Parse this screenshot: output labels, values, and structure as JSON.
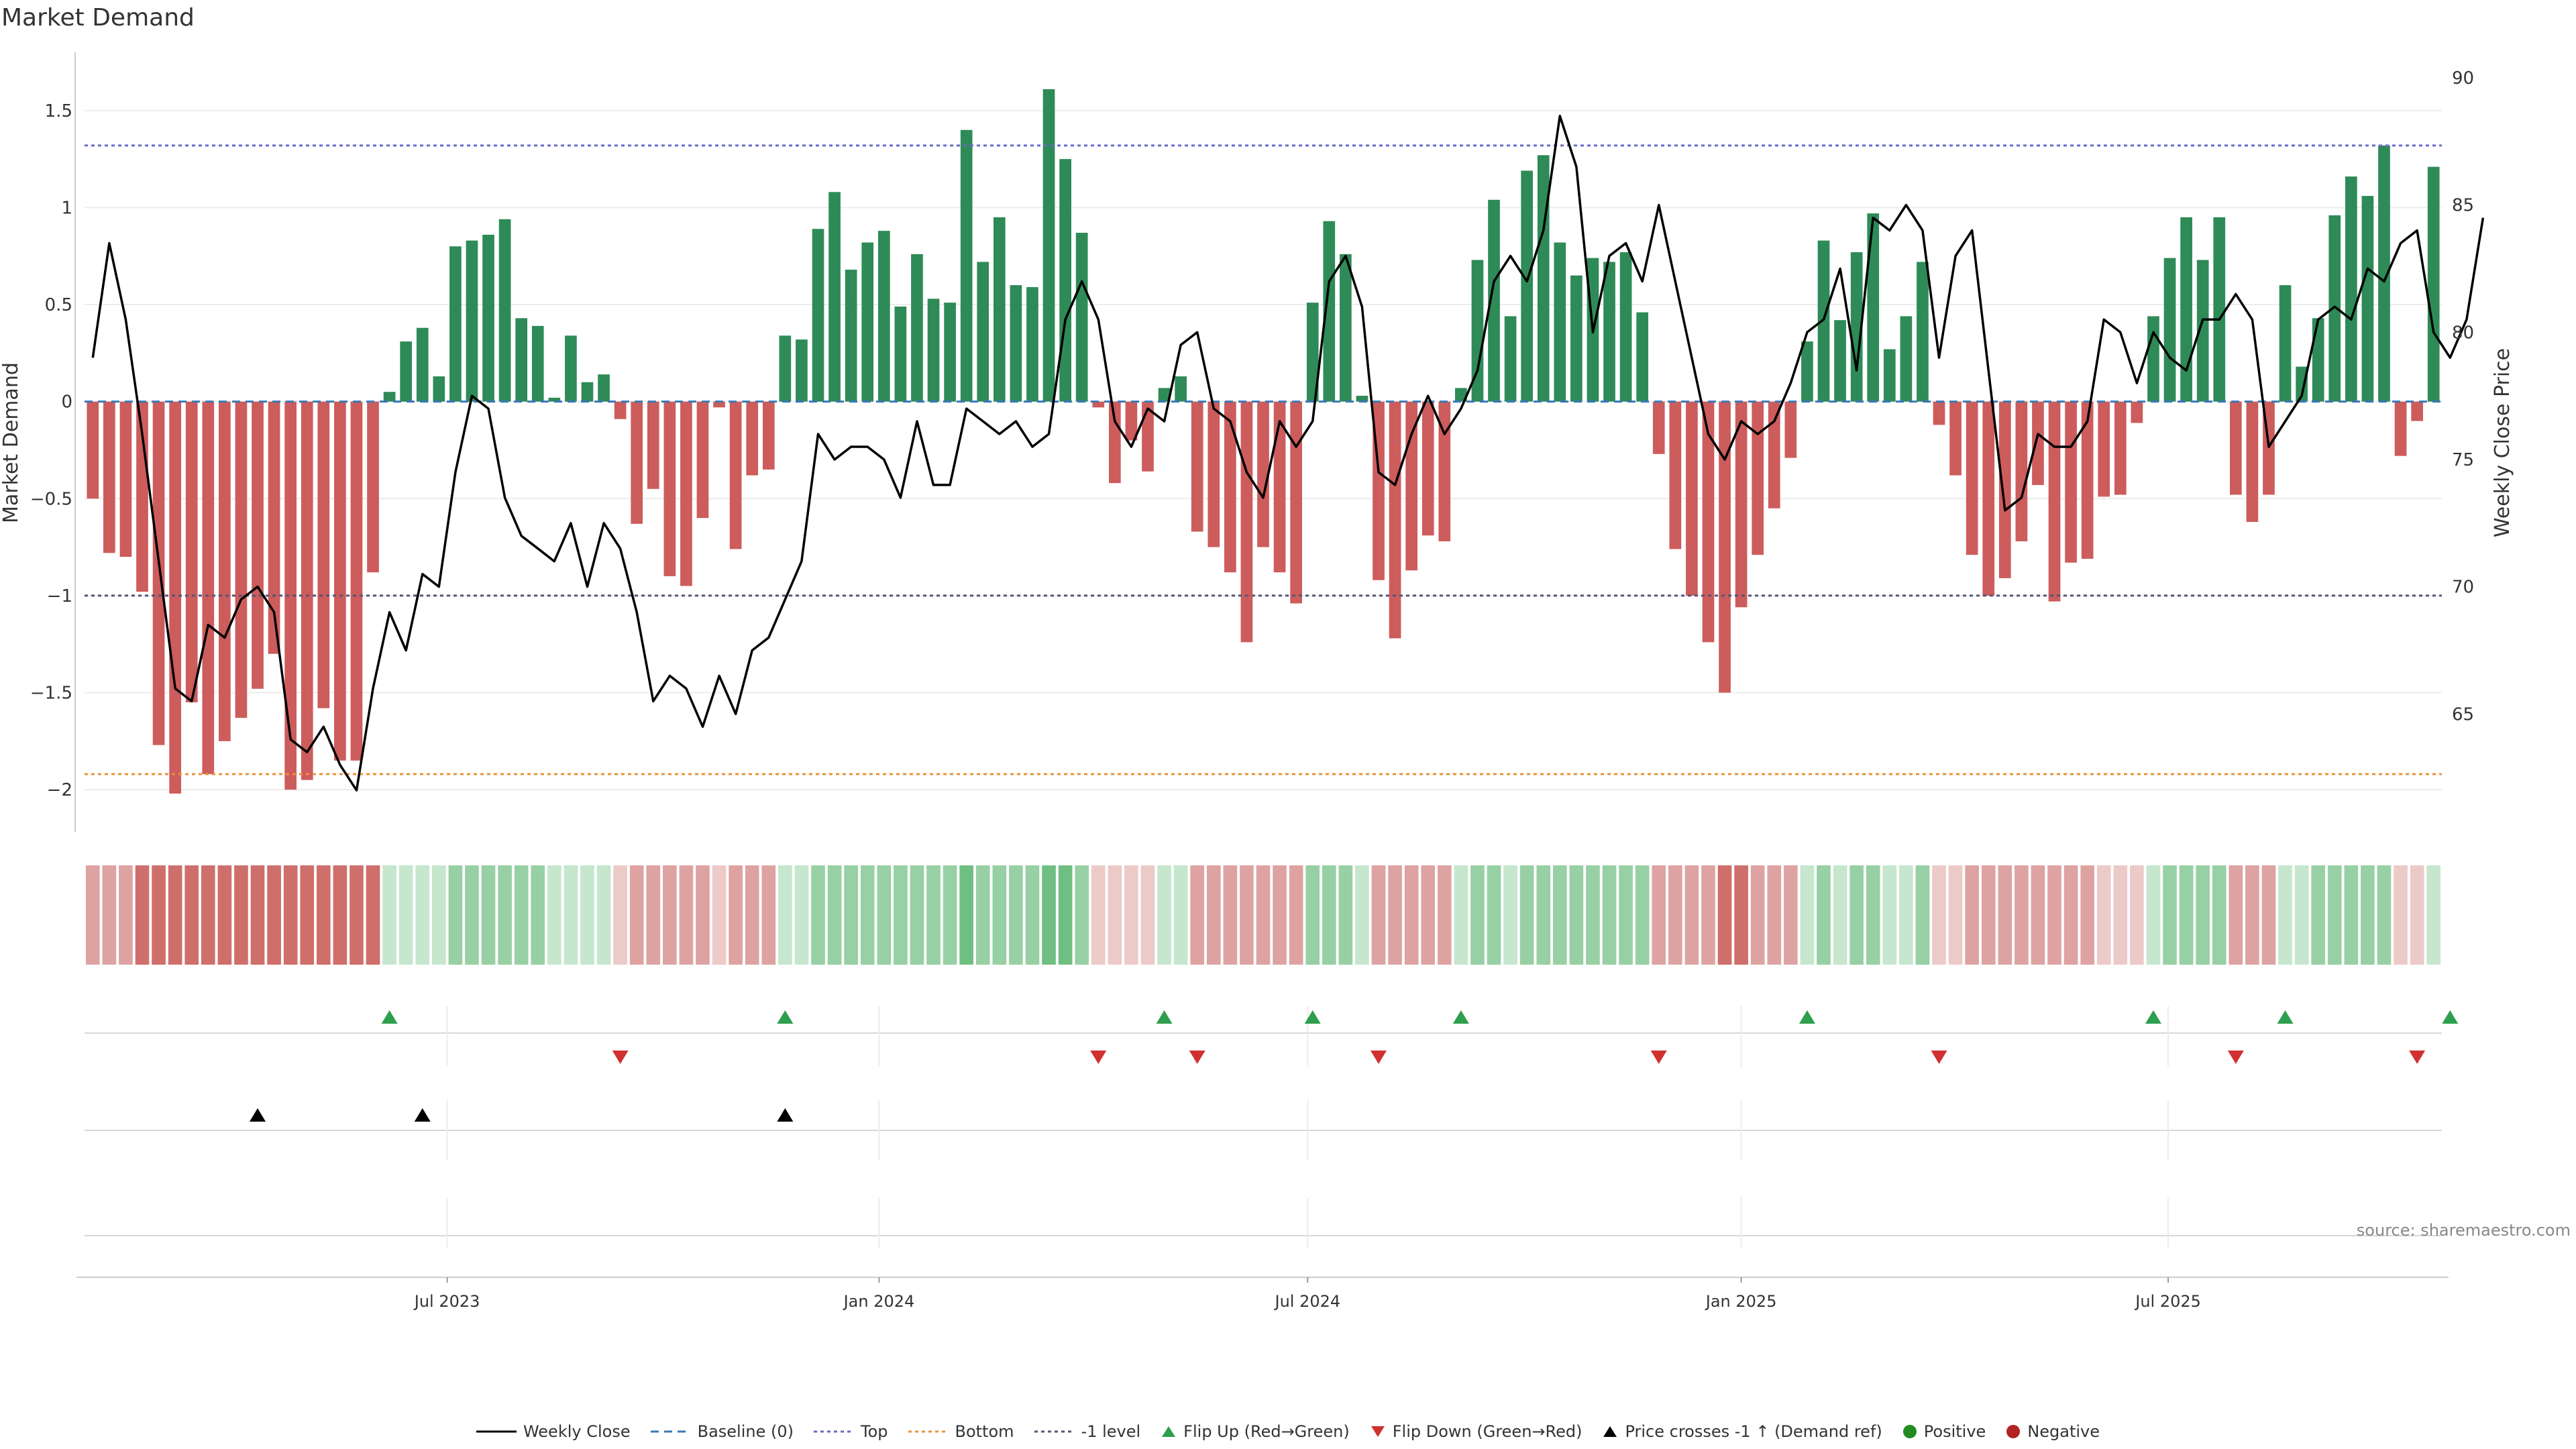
{
  "title": "Market Demand",
  "source": "source: sharemaestro.com",
  "colors": {
    "positive_bar": "#2e8b57",
    "negative_bar": "#cd5c5c",
    "top_line": "#6a6acd",
    "bottom_line": "#e8923c",
    "neg1_line": "#555577",
    "baseline": "#3a78b5",
    "flip_up": "#2e9e4f",
    "flip_down": "#d03030",
    "cross": "#000000",
    "close_line": "#000000"
  },
  "legend": [
    {
      "key": "close",
      "label": "Weekly Close"
    },
    {
      "key": "baseline",
      "label": "Baseline (0)"
    },
    {
      "key": "top",
      "label": "Top"
    },
    {
      "key": "bottom",
      "label": "Bottom"
    },
    {
      "key": "neg1",
      "label": "-1 level"
    },
    {
      "key": "flipup",
      "label": "Flip Up (Red→Green)"
    },
    {
      "key": "flipdown",
      "label": "Flip Down (Green→Red)"
    },
    {
      "key": "cross",
      "label": "Price crosses -1 ↑ (Demand ref)"
    },
    {
      "key": "pos",
      "label": "Positive"
    },
    {
      "key": "neg",
      "label": "Negative"
    }
  ],
  "chart_data": {
    "type": "bar",
    "title": "Market Demand",
    "ylabel": "Market Demand",
    "y2label": "Weekly Close Price",
    "ylim": [
      -2.2,
      1.8
    ],
    "y2lim": [
      60.5,
      91.0
    ],
    "yticks": [
      {
        "v": 1.5,
        "label": "1.5"
      },
      {
        "v": 1,
        "label": "1"
      },
      {
        "v": 0.5,
        "label": "0.5"
      },
      {
        "v": 0,
        "label": "0"
      },
      {
        "v": -0.5,
        "label": "−0.5"
      },
      {
        "v": -1,
        "label": "−1"
      },
      {
        "v": -1.5,
        "label": "−1.5"
      },
      {
        "v": -2,
        "label": "−2"
      }
    ],
    "y2ticks": [
      {
        "v": 90,
        "label": "90"
      },
      {
        "v": 85,
        "label": "85"
      },
      {
        "v": 80,
        "label": "80"
      },
      {
        "v": 75,
        "label": "75"
      },
      {
        "v": 70,
        "label": "70"
      },
      {
        "v": 65,
        "label": "65"
      }
    ],
    "xticks": [
      {
        "i": 21.5,
        "label": "Jul 2023"
      },
      {
        "i": 47.7,
        "label": "Jan 2024"
      },
      {
        "i": 73.7,
        "label": "Jul 2024"
      },
      {
        "i": 100,
        "label": "Jan 2025"
      },
      {
        "i": 125.9,
        "label": "Jul 2025"
      }
    ],
    "top_level": 1.32,
    "bottom_level": -1.92,
    "neg1_level": -1,
    "demand": [
      -0.5,
      -0.78,
      -0.8,
      -0.98,
      -1.77,
      -2.02,
      -1.55,
      -1.92,
      -1.75,
      -1.63,
      -1.48,
      -1.3,
      -2.0,
      -1.95,
      -1.58,
      -1.85,
      -1.85,
      -0.88,
      0.05,
      0.31,
      0.38,
      0.13,
      0.8,
      0.83,
      0.86,
      0.94,
      0.43,
      0.39,
      0.02,
      0.34,
      0.1,
      0.14,
      -0.09,
      -0.63,
      -0.45,
      -0.9,
      -0.95,
      -0.6,
      -0.03,
      -0.76,
      -0.38,
      -0.35,
      0.34,
      0.32,
      0.89,
      1.08,
      0.68,
      0.82,
      0.88,
      0.49,
      0.76,
      0.53,
      0.51,
      1.4,
      0.72,
      0.95,
      0.6,
      0.59,
      1.61,
      1.25,
      0.87,
      -0.03,
      -0.42,
      -0.2,
      -0.36,
      0.07,
      0.13,
      -0.67,
      -0.75,
      -0.88,
      -1.24,
      -0.75,
      -0.88,
      -1.04,
      0.51,
      0.93,
      0.76,
      0.03,
      -0.92,
      -1.22,
      -0.87,
      -0.69,
      -0.72,
      0.07,
      0.73,
      1.04,
      0.44,
      1.19,
      1.27,
      0.82,
      0.65,
      0.74,
      0.72,
      0.77,
      0.46,
      -0.27,
      -0.76,
      -1.0,
      -1.24,
      -1.5,
      -1.06,
      -0.79,
      -0.55,
      -0.29,
      0.31,
      0.83,
      0.42,
      0.77,
      0.97,
      0.27,
      0.44,
      0.72,
      -0.12,
      -0.38,
      -0.79,
      -1.0,
      -0.91,
      -0.72,
      -0.43,
      -1.03,
      -0.83,
      -0.81,
      -0.49,
      -0.48,
      -0.11,
      0.44,
      0.74,
      0.95,
      0.73,
      0.95,
      -0.48,
      -0.62,
      -0.48,
      0.6,
      0.18,
      0.43,
      0.96,
      1.16,
      1.06,
      1.32,
      -0.28,
      -0.1,
      1.21
    ],
    "close": [
      79.0,
      83.5,
      80.5,
      76.0,
      71.0,
      66.0,
      65.5,
      68.5,
      68.0,
      69.5,
      70.0,
      69.0,
      64.0,
      63.5,
      64.5,
      63.0,
      62.0,
      66.0,
      69.0,
      67.5,
      70.5,
      70.0,
      74.5,
      77.5,
      77.0,
      73.5,
      72.0,
      71.5,
      71.0,
      72.5,
      70.0,
      72.5,
      71.5,
      69.0,
      65.5,
      66.5,
      66.0,
      64.5,
      66.5,
      65.0,
      67.5,
      68.0,
      69.5,
      71.0,
      76.0,
      75.0,
      75.5,
      75.5,
      75.0,
      73.5,
      76.5,
      74.0,
      74.0,
      77.0,
      76.5,
      76.0,
      76.5,
      75.5,
      76.0,
      80.5,
      82.0,
      80.5,
      76.5,
      75.5,
      77.0,
      76.5,
      79.5,
      80.0,
      77.0,
      76.5,
      74.5,
      73.5,
      76.5,
      75.5,
      76.5,
      82.0,
      83.0,
      81.0,
      74.5,
      74.0,
      76.0,
      77.5,
      76.0,
      77.0,
      78.5,
      82.0,
      83.0,
      82.0,
      84.0,
      88.5,
      86.5,
      80.0,
      83.0,
      83.5,
      82.0,
      85.0,
      82.0,
      79.0,
      76.0,
      75.0,
      76.5,
      76.0,
      76.5,
      78.0,
      80.0,
      80.5,
      82.5,
      78.5,
      84.5,
      84.0,
      85.0,
      84.0,
      79.0,
      83.0,
      84.0,
      78.5,
      73.0,
      73.5,
      76.0,
      75.5,
      75.5,
      76.5,
      80.5,
      80.0,
      78.0,
      80.0,
      79.0,
      78.5,
      80.5,
      80.5,
      81.5,
      80.5,
      75.5,
      76.5,
      77.5,
      80.5,
      81.0,
      80.5,
      82.5,
      82.0,
      83.5,
      84.0,
      80.0,
      79.0,
      80.5,
      84.5
    ],
    "shades": [
      2,
      2,
      2,
      3,
      3,
      3,
      3,
      3,
      3,
      3,
      3,
      3,
      3,
      3,
      3,
      3,
      3,
      3,
      1,
      1,
      1,
      1,
      2,
      2,
      2,
      2,
      2,
      2,
      1,
      1,
      1,
      1,
      1,
      2,
      2,
      2,
      2,
      2,
      1,
      2,
      2,
      2,
      1,
      1,
      2,
      2,
      2,
      2,
      2,
      2,
      2,
      2,
      2,
      3,
      2,
      2,
      2,
      2,
      3,
      3,
      2,
      1,
      1,
      1,
      1,
      1,
      1,
      2,
      2,
      2,
      2,
      2,
      2,
      2,
      2,
      2,
      2,
      1,
      2,
      2,
      2,
      2,
      2,
      1,
      2,
      2,
      1,
      2,
      2,
      2,
      2,
      2,
      2,
      2,
      2,
      2,
      2,
      2,
      2,
      3,
      3,
      2,
      2,
      2,
      1,
      2,
      1,
      2,
      2,
      1,
      1,
      2,
      1,
      1,
      2,
      2,
      2,
      2,
      2,
      2,
      2,
      2,
      1,
      1,
      1,
      1,
      2,
      2,
      2,
      2,
      2,
      2,
      2,
      1,
      1,
      2,
      2,
      2,
      2,
      2,
      1,
      1,
      1
    ],
    "flip_up": [
      18,
      42,
      65,
      74,
      83,
      104,
      125,
      133,
      143
    ],
    "flip_down": [
      32,
      61,
      67,
      78,
      95,
      112,
      130,
      141
    ],
    "price_cross": [
      10,
      20,
      42
    ]
  }
}
